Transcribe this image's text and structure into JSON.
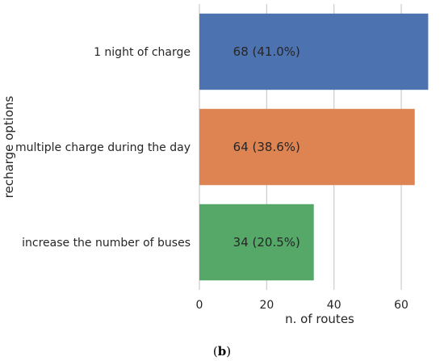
{
  "chart_data": {
    "type": "bar",
    "orientation": "horizontal",
    "categories": [
      "1 night of charge",
      "multiple charge during the day",
      "increase the number of buses"
    ],
    "values": [
      68,
      64,
      34
    ],
    "data_labels": [
      "68 (41.0%)",
      "64 (38.6%)",
      "34 (20.5%)"
    ],
    "colors": [
      "#4c72b0",
      "#dd8452",
      "#55a868"
    ],
    "xlabel": "n. of routes",
    "ylabel": "recharge options",
    "xlim": [
      0,
      71.5
    ],
    "xticks": [
      0,
      20,
      40,
      60
    ],
    "grid": "vertical",
    "gridColor": "#cccccc"
  },
  "caption": {
    "open": "(",
    "letter": "b",
    "close": ")"
  }
}
